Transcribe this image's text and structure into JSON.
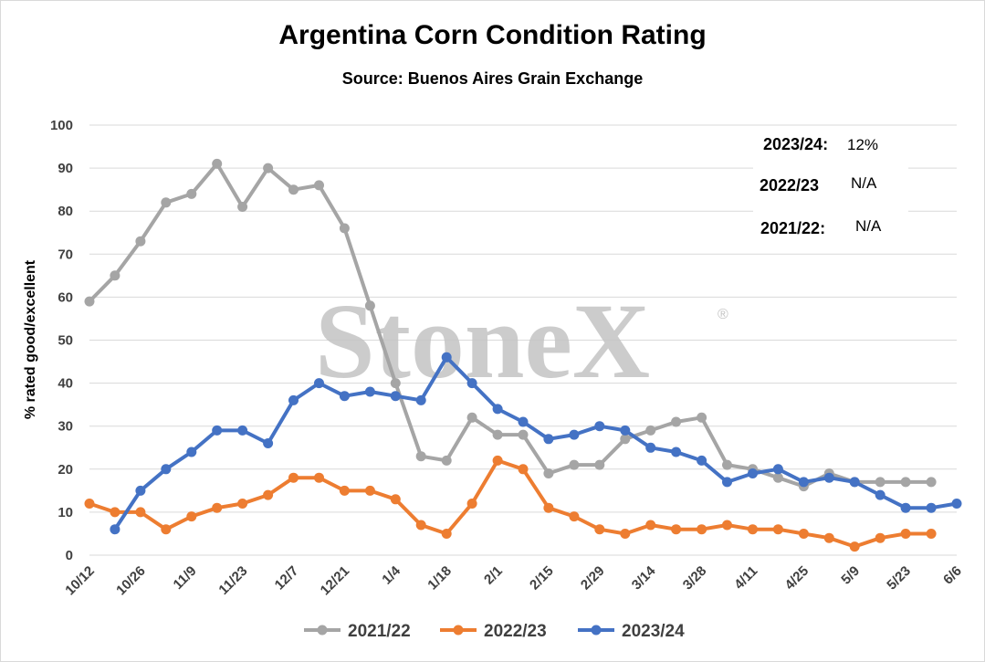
{
  "chart_data": {
    "type": "line",
    "title": "Argentina Corn Condition Rating",
    "subtitle": "Source: Buenos Aires Grain Exchange",
    "xlabel": "",
    "ylabel": "% rated good/excellent",
    "ylim": [
      0,
      100
    ],
    "yticks": [
      "0",
      "10",
      "20",
      "30",
      "40",
      "50",
      "60",
      "70",
      "80",
      "90",
      "100"
    ],
    "xticks": [
      "10/12",
      "10/26",
      "11/9",
      "11/23",
      "12/7",
      "12/21",
      "1/4",
      "1/18",
      "2/1",
      "2/15",
      "2/29",
      "3/14",
      "3/28",
      "4/11",
      "4/25",
      "5/9",
      "5/23",
      "6/6"
    ],
    "grid": true,
    "legend": "bottom",
    "watermark": "StoneX",
    "watermark_mark": "®",
    "annotations": [
      {
        "label": "2023/24:",
        "value": "12%"
      },
      {
        "label": "2022/23",
        "value": "N/A"
      },
      {
        "label": "2021/22:",
        "value": "N/A"
      }
    ],
    "series": [
      {
        "name": "2021/22",
        "color": "#a5a5a5",
        "start_index": 0,
        "values": [
          59,
          65,
          73,
          82,
          84,
          91,
          81,
          90,
          85,
          86,
          76,
          58,
          40,
          23,
          22,
          32,
          28,
          28,
          19,
          21,
          21,
          27,
          29,
          31,
          32,
          21,
          20,
          18,
          16,
          19,
          17,
          17,
          17,
          17
        ]
      },
      {
        "name": "2022/23",
        "color": "#ed7d31",
        "start_index": 0,
        "values": [
          12,
          10,
          10,
          6,
          9,
          11,
          12,
          14,
          18,
          18,
          15,
          15,
          13,
          7,
          5,
          12,
          22,
          20,
          11,
          9,
          6,
          5,
          7,
          6,
          6,
          7,
          6,
          6,
          5,
          4,
          2,
          4,
          5,
          5
        ]
      },
      {
        "name": "2023/24",
        "color": "#4472c4",
        "start_index": 1,
        "values": [
          6,
          15,
          20,
          24,
          29,
          29,
          26,
          36,
          40,
          37,
          38,
          37,
          36,
          46,
          40,
          34,
          31,
          27,
          28,
          30,
          29,
          25,
          24,
          22,
          17,
          19,
          20,
          17,
          18,
          17,
          14,
          11,
          11,
          12
        ]
      }
    ]
  }
}
